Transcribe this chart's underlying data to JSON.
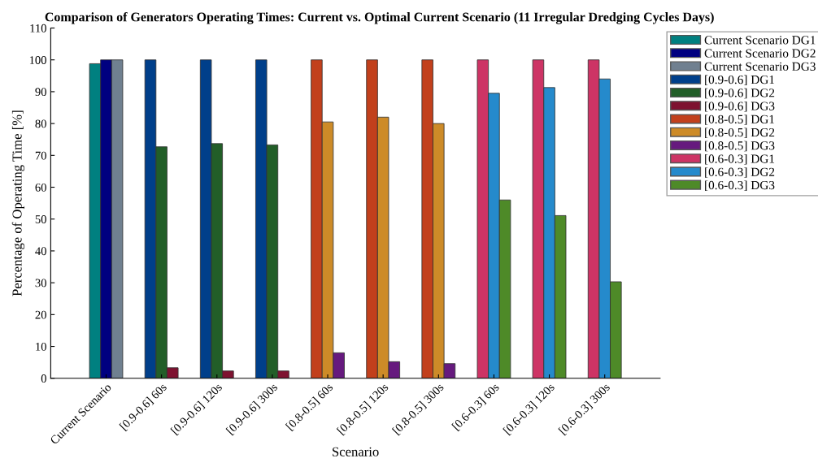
{
  "chart_data": {
    "type": "bar",
    "title": "Comparison of Generators Operating Times: Current vs. Optimal Current Scenario (11 Irregular Dredging Cycles Days)",
    "xlabel": "Scenario",
    "ylabel": "Percentage of Operating Time [%]",
    "categories": [
      "Current Scenario",
      "[0.9-0.6] 60s",
      "[0.9-0.6] 120s",
      "[0.9-0.6] 300s",
      "[0.8-0.5] 60s",
      "[0.8-0.5] 120s",
      "[0.8-0.5] 300s",
      "[0.6-0.3] 60s",
      "[0.6-0.3] 120s",
      "[0.6-0.3] 300s"
    ],
    "series": [
      {
        "name": "Current Scenario DG1",
        "color": "#008080",
        "values": [
          98.8,
          null,
          null,
          null,
          null,
          null,
          null,
          null,
          null,
          null
        ]
      },
      {
        "name": "Current Scenario DG2",
        "color": "#000080",
        "values": [
          100,
          null,
          null,
          null,
          null,
          null,
          null,
          null,
          null,
          null
        ]
      },
      {
        "name": "Current Scenario DG3",
        "color": "#708090",
        "values": [
          100,
          null,
          null,
          null,
          null,
          null,
          null,
          null,
          null,
          null
        ]
      },
      {
        "name": "[0.9-0.6] DG1",
        "color": "#003f8a",
        "values": [
          null,
          100,
          100,
          100,
          null,
          null,
          null,
          null,
          null,
          null
        ]
      },
      {
        "name": "[0.9-0.6] DG2",
        "color": "#225e28",
        "values": [
          null,
          72.7,
          73.7,
          73.3,
          null,
          null,
          null,
          null,
          null,
          null
        ]
      },
      {
        "name": "[0.9-0.6] DG3",
        "color": "#7e1230",
        "values": [
          null,
          3.3,
          2.3,
          2.3,
          null,
          null,
          null,
          null,
          null,
          null
        ]
      },
      {
        "name": "[0.8-0.5] DG1",
        "color": "#c2401c",
        "values": [
          null,
          null,
          null,
          null,
          100,
          100,
          100,
          null,
          null,
          null
        ]
      },
      {
        "name": "[0.8-0.5] DG2",
        "color": "#cd8b28",
        "values": [
          null,
          null,
          null,
          null,
          80.5,
          82,
          80,
          null,
          null,
          null
        ]
      },
      {
        "name": "[0.8-0.5] DG3",
        "color": "#661a7e",
        "values": [
          null,
          null,
          null,
          null,
          8,
          5.2,
          4.6,
          null,
          null,
          null
        ]
      },
      {
        "name": "[0.6-0.3] DG1",
        "color": "#cd3465",
        "values": [
          null,
          null,
          null,
          null,
          null,
          null,
          null,
          100,
          100,
          100
        ]
      },
      {
        "name": "[0.6-0.3] DG2",
        "color": "#258acc",
        "values": [
          null,
          null,
          null,
          null,
          null,
          null,
          null,
          89.5,
          91.3,
          94
        ]
      },
      {
        "name": "[0.6-0.3] DG3",
        "color": "#4e8a28",
        "values": [
          null,
          null,
          null,
          null,
          null,
          null,
          null,
          56,
          51.1,
          30.3
        ]
      }
    ],
    "ylim": [
      0,
      110
    ],
    "yticks": [
      0,
      10,
      20,
      30,
      40,
      50,
      60,
      70,
      80,
      90,
      100,
      110
    ],
    "legend": "right",
    "grid": false
  }
}
